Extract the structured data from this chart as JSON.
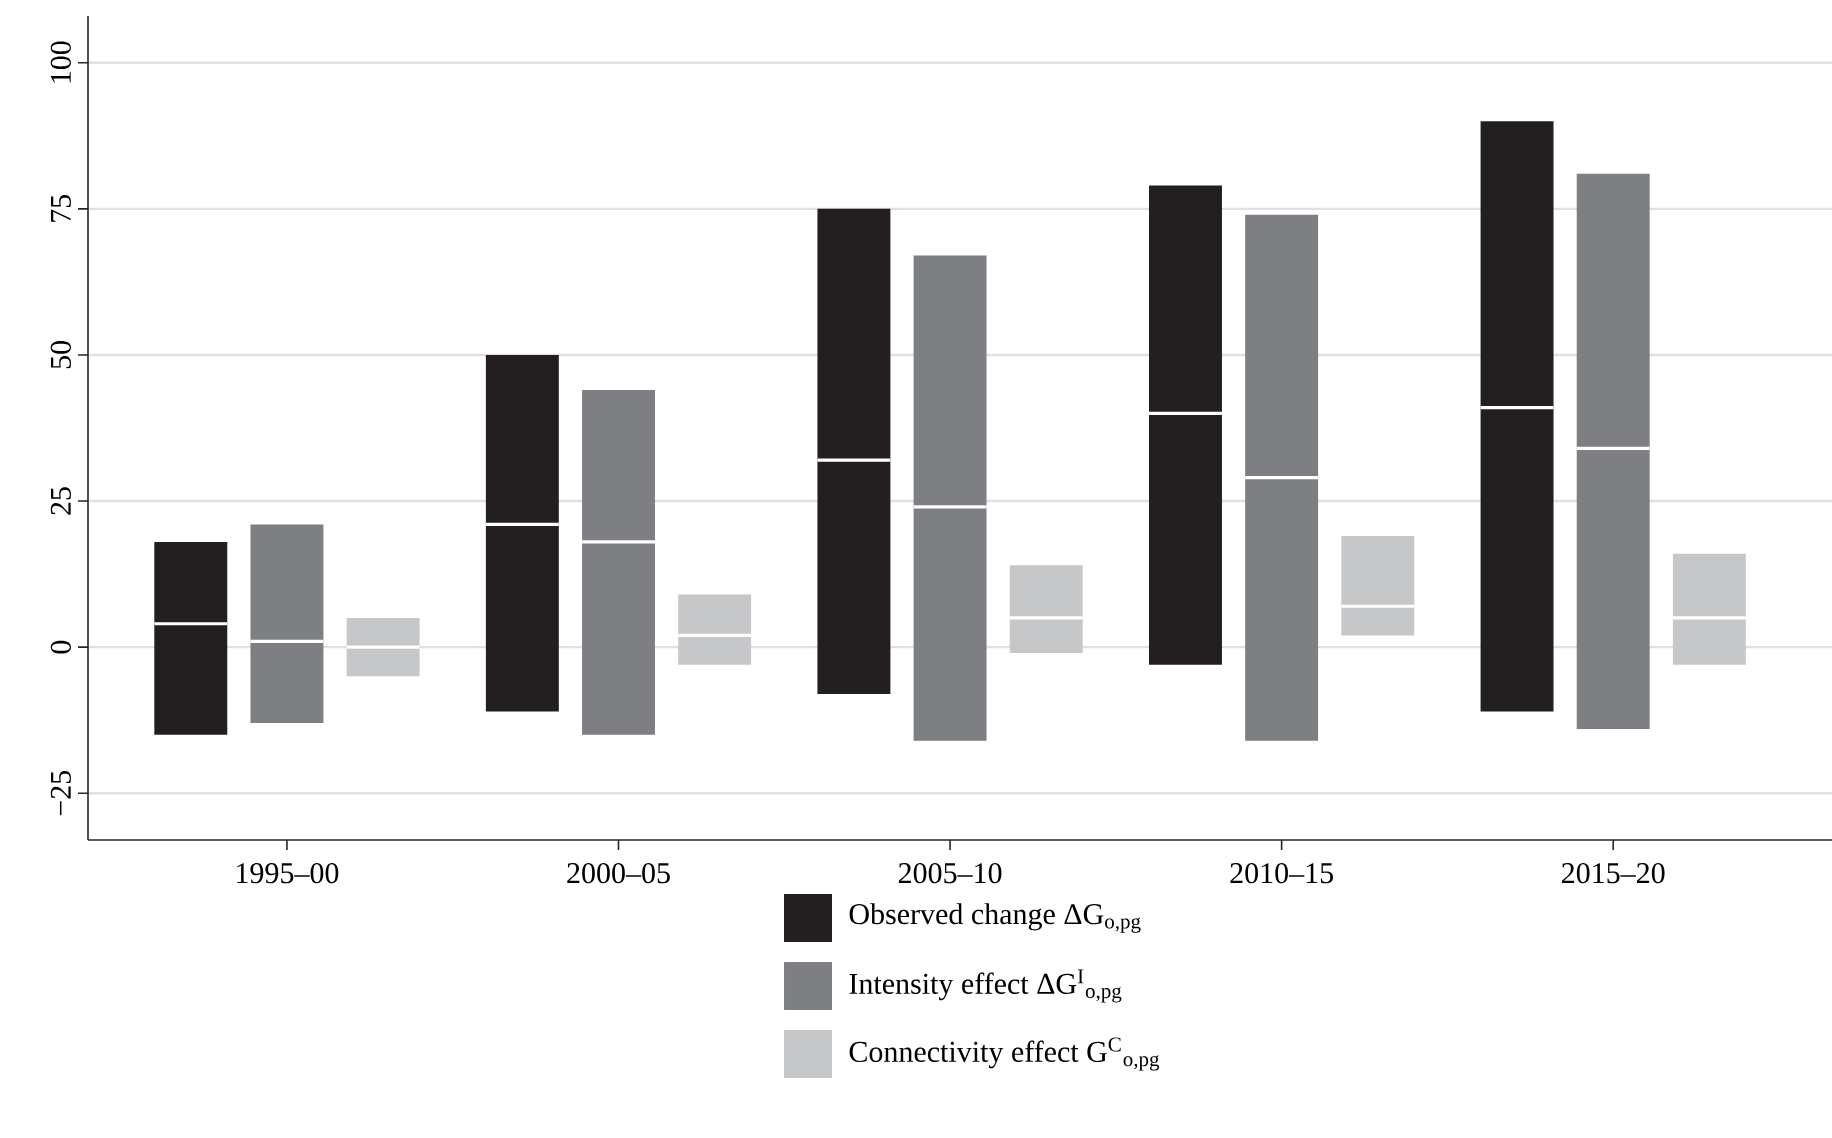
{
  "chart_data": {
    "type": "box",
    "categories": [
      "1995–00",
      "2000–05",
      "2005–10",
      "2010–15",
      "2015–20"
    ],
    "series": [
      {
        "name": "Observed change  ΔG$_{o,pg}$",
        "color": "#231f20",
        "boxes": [
          {
            "low": -15,
            "q1": -15,
            "median": 4,
            "q3": 18,
            "high": 18
          },
          {
            "low": -11,
            "q1": -11,
            "median": 21,
            "q3": 50,
            "high": 50
          },
          {
            "low": -8,
            "q1": -8,
            "median": 32,
            "q3": 75,
            "high": 75
          },
          {
            "low": -3,
            "q1": -3,
            "median": 40,
            "q3": 79,
            "high": 79
          },
          {
            "low": -11,
            "q1": -11,
            "median": 41,
            "q3": 90,
            "high": 90
          }
        ]
      },
      {
        "name": "Intensity effect  ΔG$^{I}$$_{o,pg}$",
        "color": "#7e7f83",
        "boxes": [
          {
            "low": -13,
            "q1": -13,
            "median": 1,
            "q3": 21,
            "high": 21
          },
          {
            "low": -15,
            "q1": -15,
            "median": 18,
            "q3": 44,
            "high": 44
          },
          {
            "low": -16,
            "q1": -16,
            "median": 24,
            "q3": 67,
            "high": 67
          },
          {
            "low": -16,
            "q1": -16,
            "median": 29,
            "q3": 74,
            "high": 74
          },
          {
            "low": -14,
            "q1": -14,
            "median": 34,
            "q3": 81,
            "high": 81
          }
        ]
      },
      {
        "name": "Connectivity effect  G$^{C}$$_{o,pg}$",
        "color": "#c6c7c9",
        "boxes": [
          {
            "low": -5,
            "q1": -5,
            "median": 0,
            "q3": 5,
            "high": 5
          },
          {
            "low": -3,
            "q1": -3,
            "median": 2,
            "q3": 9,
            "high": 9
          },
          {
            "low": -1,
            "q1": -1,
            "median": 5,
            "q3": 14,
            "high": 14
          },
          {
            "low": 2,
            "q1": 2,
            "median": 7,
            "q3": 19,
            "high": 19
          },
          {
            "low": -3,
            "q1": -3,
            "median": 5,
            "q3": 16,
            "high": 16
          }
        ]
      }
    ],
    "ylim": [
      -33,
      108
    ],
    "yticks": [
      {
        "value": -25,
        "label": "−25"
      },
      0,
      25,
      50,
      75,
      100
    ],
    "grid": "y",
    "legend": "bottom"
  }
}
